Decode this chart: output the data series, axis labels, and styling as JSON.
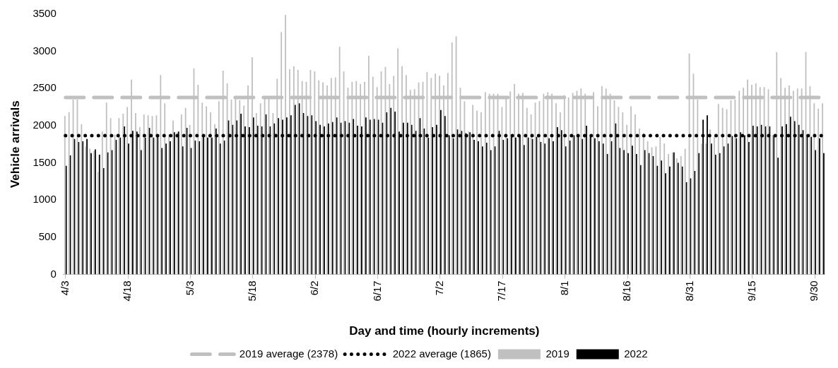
{
  "chart_data": {
    "type": "bar",
    "xlabel": "Day and time (hourly increments)",
    "ylabel": "Vehicle arrivals",
    "legend": "bottom",
    "ylim": [
      0,
      3500
    ],
    "yticks": [
      0,
      500,
      1000,
      1500,
      2000,
      2500,
      3000,
      3500
    ],
    "categories": [
      "4/3",
      null,
      null,
      null,
      null,
      null,
      null,
      null,
      null,
      null,
      null,
      null,
      null,
      null,
      null,
      "4/18",
      null,
      null,
      null,
      null,
      null,
      null,
      null,
      null,
      null,
      null,
      null,
      null,
      null,
      null,
      "5/3",
      null,
      null,
      null,
      null,
      null,
      null,
      null,
      null,
      null,
      null,
      null,
      null,
      null,
      null,
      "5/18",
      null,
      null,
      null,
      null,
      null,
      null,
      null,
      null,
      null,
      null,
      null,
      null,
      null,
      null,
      "6/2",
      null,
      null,
      null,
      null,
      null,
      null,
      null,
      null,
      null,
      null,
      null,
      null,
      null,
      null,
      "6/17",
      null,
      null,
      null,
      null,
      null,
      null,
      null,
      null,
      null,
      null,
      null,
      null,
      null,
      null,
      "7/2",
      null,
      null,
      null,
      null,
      null,
      null,
      null,
      null,
      null,
      null,
      null,
      null,
      null,
      null,
      "7/17",
      null,
      null,
      null,
      null,
      null,
      null,
      null,
      null,
      null,
      null,
      null,
      null,
      null,
      null,
      "8/1",
      null,
      null,
      null,
      null,
      null,
      null,
      null,
      null,
      null,
      null,
      null,
      null,
      null,
      null,
      "8/16",
      null,
      null,
      null,
      null,
      null,
      null,
      null,
      null,
      null,
      null,
      null,
      null,
      null,
      null,
      "8/31",
      null,
      null,
      null,
      null,
      null,
      null,
      null,
      null,
      null,
      null,
      null,
      null,
      null,
      null,
      "9/15",
      null,
      null,
      null,
      null,
      null,
      null,
      null,
      null,
      null,
      null,
      null,
      null,
      null,
      null,
      "9/30",
      null,
      null
    ],
    "series": [
      {
        "name": "2019",
        "color": "#c0c0c0",
        "values": [
          2130,
          2180,
          2350,
          2350,
          2020,
          1720,
          1690,
          1660,
          1380,
          1920,
          2310,
          2100,
          1880,
          2100,
          2160,
          2250,
          2620,
          2170,
          1980,
          2150,
          2140,
          2130,
          2140,
          2680,
          2300,
          1880,
          2070,
          1910,
          2150,
          2240,
          2010,
          2770,
          2550,
          2310,
          2260,
          2180,
          2020,
          2330,
          2740,
          2570,
          2350,
          2380,
          2340,
          2270,
          2540,
          2920,
          2170,
          2300,
          2370,
          2370,
          2170,
          2630,
          3260,
          3490,
          2760,
          2800,
          2750,
          2600,
          2590,
          2750,
          2730,
          2610,
          2580,
          2540,
          2640,
          2650,
          3060,
          2730,
          2510,
          2590,
          2600,
          2560,
          2590,
          2940,
          2660,
          2520,
          2730,
          2790,
          2560,
          2670,
          3040,
          2800,
          2680,
          2480,
          2490,
          2580,
          2590,
          2720,
          2640,
          2700,
          2670,
          2540,
          2710,
          3120,
          3200,
          2510,
          2330,
          1920,
          2280,
          2200,
          2180,
          2450,
          2430,
          2430,
          2430,
          2250,
          2360,
          2460,
          2560,
          2430,
          2440,
          2240,
          2150,
          2310,
          2330,
          2430,
          2450,
          2430,
          2300,
          2180,
          2410,
          2380,
          2440,
          2470,
          2500,
          2430,
          1850,
          2450,
          2260,
          2530,
          2500,
          2430,
          2340,
          2250,
          2180,
          2010,
          2260,
          2150,
          1960,
          1900,
          1790,
          1710,
          1720,
          1850,
          1760,
          1620,
          1640,
          1560,
          1590,
          1690,
          2970,
          2700,
          2350,
          1760,
          1760,
          1950,
          1850,
          2290,
          2240,
          2220,
          2340,
          2350,
          2470,
          2510,
          2620,
          2550,
          2570,
          2520,
          2520,
          2490,
          1870,
          2990,
          2640,
          2510,
          2540,
          2470,
          2500,
          2500,
          2990,
          2530,
          2300,
          2230,
          2300
        ]
      },
      {
        "name": "2022",
        "color": "#000000",
        "values": [
          1460,
          1600,
          1820,
          1780,
          1790,
          1820,
          1630,
          1680,
          1610,
          1430,
          1640,
          1670,
          1810,
          1840,
          1990,
          1760,
          1930,
          1920,
          1670,
          1840,
          1970,
          1840,
          1850,
          1700,
          1760,
          1790,
          1910,
          1920,
          1720,
          1970,
          1700,
          1800,
          1790,
          1870,
          1840,
          1840,
          1960,
          1760,
          1800,
          2070,
          2010,
          2070,
          2160,
          1990,
          1980,
          2110,
          2000,
          1990,
          2150,
          1990,
          2030,
          2100,
          2080,
          2110,
          2140,
          2280,
          2300,
          2170,
          2130,
          2140,
          2060,
          2010,
          1990,
          2030,
          2050,
          2110,
          2040,
          2060,
          2040,
          2090,
          2000,
          1990,
          2110,
          2080,
          2090,
          2080,
          2040,
          2180,
          2240,
          2190,
          1920,
          2040,
          2040,
          2010,
          1930,
          2100,
          1960,
          1840,
          1980,
          2010,
          2210,
          2130,
          1870,
          1830,
          1950,
          1930,
          1900,
          1910,
          1810,
          1790,
          1720,
          1770,
          1670,
          1720,
          1930,
          1810,
          1830,
          1850,
          1840,
          1860,
          1740,
          1840,
          1820,
          1850,
          1780,
          1760,
          1830,
          1790,
          1980,
          1940,
          1720,
          1800,
          1870,
          1870,
          1820,
          2000,
          1870,
          1830,
          1790,
          1760,
          1620,
          1790,
          2030,
          1700,
          1670,
          1630,
          1730,
          1620,
          1470,
          1670,
          1630,
          1590,
          1460,
          1530,
          1360,
          1450,
          1640,
          1500,
          1450,
          1240,
          1290,
          1390,
          1630,
          2080,
          2140,
          1760,
          1610,
          1630,
          1720,
          1760,
          1860,
          1830,
          1910,
          1870,
          1780,
          2000,
          1990,
          2010,
          1990,
          1990,
          1870,
          1570,
          1990,
          2020,
          2120,
          2060,
          2010,
          1940,
          1870,
          1850,
          1670,
          1830,
          1630
        ]
      }
    ],
    "ref_lines": [
      {
        "axis": "y",
        "value": 2378,
        "label": "2019 average (2378)",
        "color": "#c0c0c0",
        "line_style": "dashed"
      },
      {
        "axis": "y",
        "value": 1865,
        "label": "2022 average (1865)",
        "color": "#000000",
        "line_style": "dotted"
      }
    ]
  }
}
